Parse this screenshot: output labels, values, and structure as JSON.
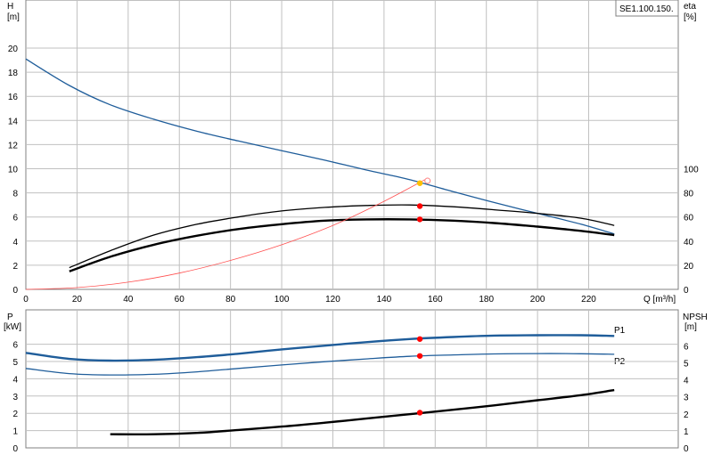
{
  "chart_data": [
    {
      "type": "line",
      "id": "top",
      "model_label": "SE1.100.150.",
      "left_axis_label": "H",
      "left_axis_unit": "[m]",
      "right_axis_label": "eta",
      "right_axis_unit": "[%]",
      "x_axis_label": "Q [m³/h]",
      "xlim": [
        0,
        255
      ],
      "ylim": [
        0,
        22
      ],
      "x_ticks": [
        "0",
        "20",
        "40",
        "60",
        "80",
        "100",
        "120",
        "140",
        "160",
        "180",
        "200",
        "220"
      ],
      "y_ticks": [
        "0",
        "2",
        "4",
        "6",
        "8",
        "10",
        "12",
        "14",
        "16",
        "18",
        "20"
      ],
      "right_ticks": [
        "0",
        "20",
        "40",
        "60",
        "80",
        "100"
      ],
      "grid": true,
      "series": [
        {
          "key": "head",
          "color": "#1f5d9a",
          "axis": "left",
          "points": [
            [
              0,
              19.1
            ],
            [
              17,
              16.9
            ],
            [
              33,
              15.3
            ],
            [
              50,
              14.1
            ],
            [
              67,
              13.1
            ],
            [
              83,
              12.3
            ],
            [
              100,
              11.5
            ],
            [
              117,
              10.7
            ],
            [
              133,
              9.9
            ],
            [
              150,
              9.1
            ],
            [
              167,
              8.1
            ],
            [
              183,
              7.2
            ],
            [
              200,
              6.3
            ],
            [
              217,
              5.4
            ],
            [
              230,
              4.6
            ]
          ]
        },
        {
          "key": "eff-upper",
          "color": "#000000",
          "axis": "right",
          "points": [
            [
              17,
              18
            ],
            [
              33,
              32
            ],
            [
              50,
              45
            ],
            [
              67,
              54
            ],
            [
              83,
              60
            ],
            [
              100,
              65
            ],
            [
              117,
              68
            ],
            [
              133,
              69.5
            ],
            [
              150,
              70
            ],
            [
              167,
              68.5
            ],
            [
              183,
              66
            ],
            [
              200,
              63
            ],
            [
              217,
              59
            ],
            [
              230,
              53
            ]
          ]
        },
        {
          "key": "eff-lower",
          "color": "#000000",
          "axis": "right",
          "bold": true,
          "points": [
            [
              17,
              15
            ],
            [
              33,
              27
            ],
            [
              50,
              37
            ],
            [
              67,
              44.5
            ],
            [
              83,
              50
            ],
            [
              100,
              54
            ],
            [
              117,
              57
            ],
            [
              133,
              58
            ],
            [
              150,
              58
            ],
            [
              167,
              57
            ],
            [
              183,
              55
            ],
            [
              200,
              52
            ],
            [
              217,
              48.5
            ],
            [
              230,
              45
            ]
          ]
        },
        {
          "key": "system-curve",
          "color": "#ff5050",
          "axis": "left",
          "thin": true,
          "points": [
            [
              0,
              0
            ],
            [
              20,
              0.15
            ],
            [
              40,
              0.6
            ],
            [
              60,
              1.35
            ],
            [
              80,
              2.4
            ],
            [
              100,
              3.7
            ],
            [
              120,
              5.3
            ],
            [
              140,
              7.3
            ],
            [
              156,
              9.1
            ]
          ]
        }
      ],
      "markers": [
        {
          "x": 154,
          "y": 8.8,
          "color": "#ffc000",
          "axis": "left"
        },
        {
          "x": 154,
          "y": 69,
          "color": "#ff0000",
          "axis": "right"
        },
        {
          "x": 154,
          "y": 58,
          "color": "#ff0000",
          "axis": "right"
        }
      ],
      "hollow_markers": [
        {
          "x": 157,
          "y": 9.0,
          "color": "#ff8080",
          "axis": "left"
        }
      ]
    },
    {
      "type": "line",
      "id": "bottom",
      "left_axis_label": "P",
      "left_axis_unit": "[kW]",
      "right_axis_label": "NPSH",
      "right_axis_unit": "[m]",
      "xlim": [
        0,
        255
      ],
      "ylim": [
        0,
        7.2
      ],
      "y_ticks": [
        "0",
        "1",
        "2",
        "3",
        "4",
        "5",
        "6"
      ],
      "right_ticks": [
        "0",
        "1",
        "2",
        "3",
        "4",
        "5",
        "6"
      ],
      "grid": true,
      "series": [
        {
          "key": "P1",
          "name": "P1",
          "color": "#1f5d9a",
          "axis": "left",
          "bold": true,
          "points": [
            [
              0,
              5.5
            ],
            [
              17,
              5.15
            ],
            [
              33,
              5.05
            ],
            [
              50,
              5.1
            ],
            [
              67,
              5.25
            ],
            [
              83,
              5.45
            ],
            [
              100,
              5.7
            ],
            [
              117,
              5.92
            ],
            [
              133,
              6.12
            ],
            [
              150,
              6.3
            ],
            [
              167,
              6.42
            ],
            [
              183,
              6.5
            ],
            [
              200,
              6.52
            ],
            [
              217,
              6.52
            ],
            [
              230,
              6.48
            ]
          ]
        },
        {
          "key": "P2",
          "name": "P2",
          "color": "#1f5d9a",
          "axis": "left",
          "points": [
            [
              0,
              4.6
            ],
            [
              17,
              4.3
            ],
            [
              33,
              4.22
            ],
            [
              50,
              4.26
            ],
            [
              67,
              4.4
            ],
            [
              83,
              4.6
            ],
            [
              100,
              4.8
            ],
            [
              117,
              4.99
            ],
            [
              133,
              5.15
            ],
            [
              150,
              5.3
            ],
            [
              167,
              5.38
            ],
            [
              183,
              5.44
            ],
            [
              200,
              5.46
            ],
            [
              217,
              5.45
            ],
            [
              230,
              5.42
            ]
          ]
        },
        {
          "key": "NPSH",
          "color": "#000000",
          "axis": "right",
          "bold": true,
          "points": [
            [
              33,
              0.8
            ],
            [
              50,
              0.8
            ],
            [
              67,
              0.88
            ],
            [
              83,
              1.05
            ],
            [
              100,
              1.25
            ],
            [
              117,
              1.48
            ],
            [
              133,
              1.72
            ],
            [
              150,
              1.98
            ],
            [
              167,
              2.24
            ],
            [
              183,
              2.5
            ],
            [
              200,
              2.8
            ],
            [
              217,
              3.1
            ],
            [
              230,
              3.4
            ]
          ]
        }
      ],
      "markers": [
        {
          "x": 154,
          "y": 6.3,
          "color": "#ff0000",
          "axis": "left"
        },
        {
          "x": 154,
          "y": 5.32,
          "color": "#ff0000",
          "axis": "left"
        },
        {
          "x": 154,
          "y": 2.07,
          "color": "#ff0000",
          "axis": "right"
        }
      ]
    }
  ]
}
